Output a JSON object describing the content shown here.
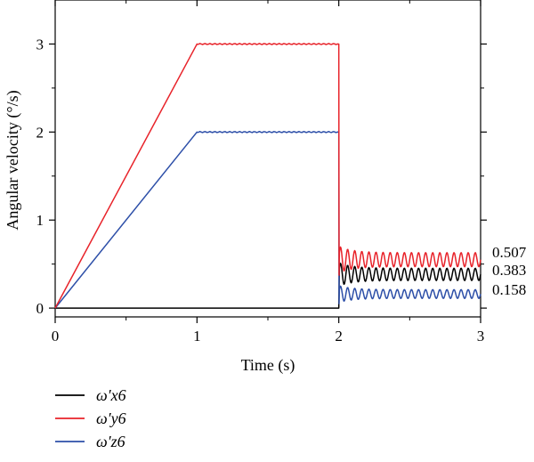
{
  "chart_data": {
    "type": "line",
    "xlabel": "Time (s)",
    "ylabel": "Angular velocity (°/s)",
    "xlim": [
      0,
      3
    ],
    "ylim": [
      -0.1,
      3.5
    ],
    "xticks": [
      "0",
      "1",
      "2",
      "3"
    ],
    "yticks": [
      "0",
      "1",
      "2",
      "3"
    ],
    "grid": false,
    "legend_position": "bottom-left, below plot",
    "series": [
      {
        "name": "ω′x6",
        "color": "#000000",
        "points": [
          [
            0,
            0
          ],
          [
            1,
            0
          ],
          [
            2,
            0
          ],
          [
            2.01,
            0.38
          ],
          [
            3,
            0.383
          ]
        ],
        "oscillation": {
          "from": 2.0,
          "center": 0.383,
          "amplitude": 0.07,
          "period": 0.05
        },
        "end_value": "0.383"
      },
      {
        "name": "ω′y6",
        "color": "#e8232a",
        "points": [
          [
            0,
            0
          ],
          [
            1,
            3.0
          ],
          [
            2,
            3.0
          ],
          [
            2.01,
            0.55
          ],
          [
            3,
            0.507
          ]
        ],
        "oscillation": {
          "from": 2.0,
          "center": 0.55,
          "amplitude": 0.08,
          "period": 0.05
        },
        "end_value": "0.507"
      },
      {
        "name": "ω′z6",
        "color": "#2d4fa8",
        "points": [
          [
            0,
            0
          ],
          [
            1,
            2.0
          ],
          [
            2,
            2.0
          ],
          [
            2.01,
            0.16
          ],
          [
            3,
            0.158
          ]
        ],
        "oscillation": {
          "from": 2.0,
          "center": 0.16,
          "amplitude": 0.05,
          "period": 0.05
        },
        "end_value": "0.158"
      }
    ]
  }
}
